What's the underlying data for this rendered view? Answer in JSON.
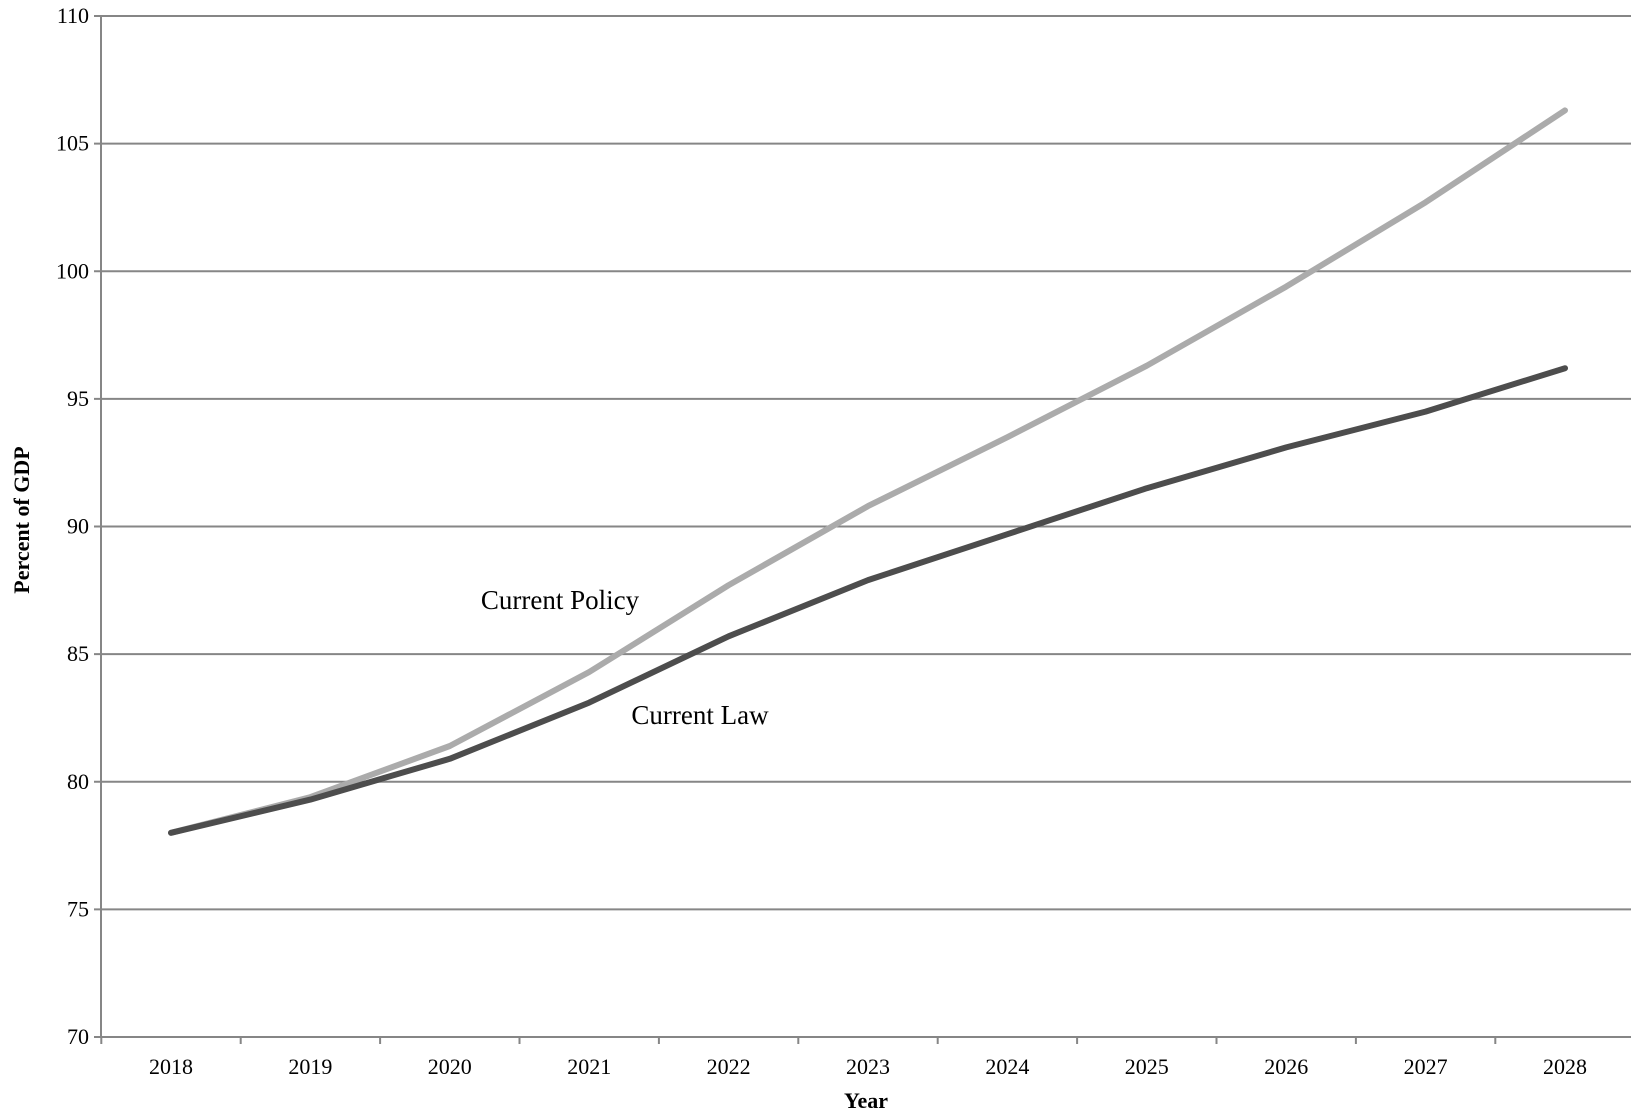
{
  "chart_data": {
    "type": "line",
    "xlabel": "Year",
    "ylabel": "Percent of GDP",
    "ylim": [
      70,
      110
    ],
    "yticks": [
      70,
      75,
      80,
      85,
      90,
      95,
      100,
      105,
      110
    ],
    "x": [
      "2018",
      "2019",
      "2020",
      "2021",
      "2022",
      "2023",
      "2024",
      "2025",
      "2026",
      "2027",
      "2028"
    ],
    "grid": true,
    "series": [
      {
        "name": "Current Policy",
        "color": "#ababab",
        "values": [
          78.0,
          79.4,
          81.4,
          84.3,
          87.7,
          90.8,
          93.5,
          96.3,
          99.4,
          102.7,
          106.3
        ]
      },
      {
        "name": "Current Law",
        "color": "#4d4d4d",
        "values": [
          78.0,
          79.3,
          80.9,
          83.1,
          85.7,
          87.9,
          89.7,
          91.5,
          93.1,
          94.5,
          96.2
        ]
      }
    ]
  }
}
